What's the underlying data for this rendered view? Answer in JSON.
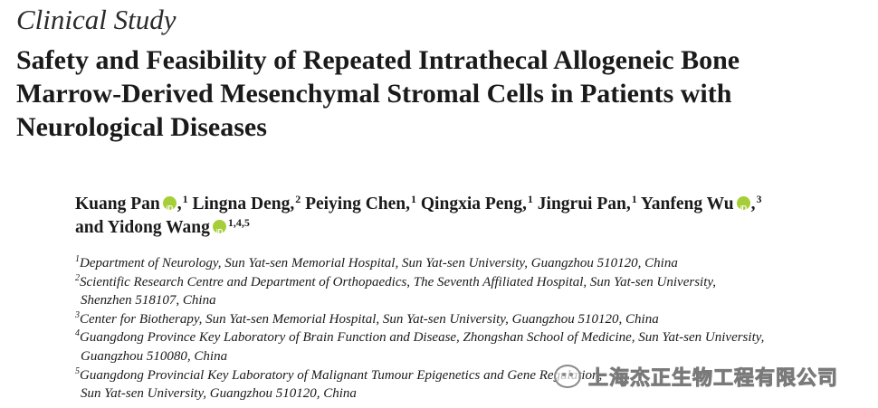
{
  "category": "Clinical Study",
  "title": {
    "lines": [
      "Safety and Feasibility of Repeated Intrathecal Allogeneic Bone",
      "Marrow-Derived Mesenchymal Stromal Cells in Patients with",
      "Neurological Diseases"
    ]
  },
  "authors": [
    {
      "name": "Kuang Pan",
      "orcid": true,
      "sup": "1"
    },
    {
      "name": "Lingna Deng",
      "orcid": false,
      "sup": "2"
    },
    {
      "name": "Peiying Chen",
      "orcid": false,
      "sup": "1"
    },
    {
      "name": "Qingxia Peng",
      "orcid": false,
      "sup": "1"
    },
    {
      "name": "Jingrui Pan",
      "orcid": false,
      "sup": "1"
    },
    {
      "name": "Yanfeng Wu",
      "orcid": true,
      "sup": "3"
    },
    {
      "name": "Yidong Wang",
      "orcid": true,
      "sup": "1,4,5"
    }
  ],
  "authors_conjunction": "and",
  "affiliations": [
    {
      "sup": "1",
      "lines": [
        "Department of Neurology, Sun Yat-sen Memorial Hospital, Sun Yat-sen University, Guangzhou 510120, China"
      ]
    },
    {
      "sup": "2",
      "lines": [
        "Scientific Research Centre and Department of Orthopaedics, The Seventh Affiliated Hospital, Sun Yat-sen University,",
        "Shenzhen 518107, China"
      ]
    },
    {
      "sup": "3",
      "lines": [
        "Center for Biotherapy, Sun Yat-sen Memorial Hospital, Sun Yat-sen University, Guangzhou 510120, China"
      ]
    },
    {
      "sup": "4",
      "lines": [
        "Guangdong Province Key Laboratory of Brain Function and Disease, Zhongshan School of Medicine, Sun Yat-sen University,",
        "Guangzhou 510080, China"
      ]
    },
    {
      "sup": "5",
      "lines": [
        "Guangdong Provincial Key Laboratory of Malignant Tumour Epigenetics and Gene Regulation,",
        "Sun Yat-sen University, Guangzhou 510120, China"
      ]
    }
  ],
  "watermark": {
    "text": "上海杰正生物工程有限公司",
    "icon": "wechat-icon"
  },
  "colors": {
    "orcid": "#a6ce39",
    "text": "#1a1a1a"
  }
}
